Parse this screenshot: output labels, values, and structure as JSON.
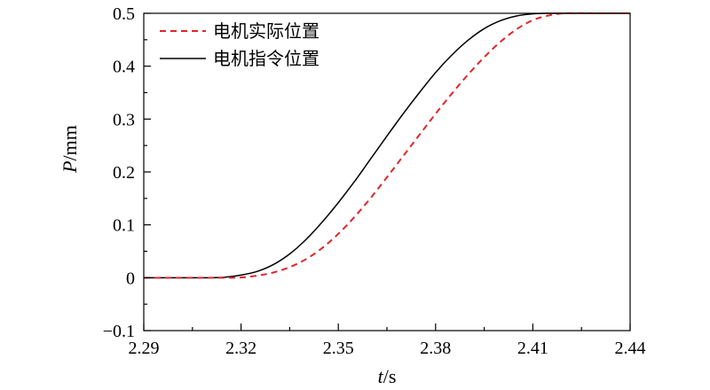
{
  "chart_data": {
    "type": "line",
    "xlabel": {
      "var": "t",
      "unit": "/s"
    },
    "ylabel": {
      "var": "P",
      "unit": "/mm"
    },
    "xlim": [
      2.29,
      2.44
    ],
    "ylim": [
      -0.1,
      0.5
    ],
    "xticks": [
      2.29,
      2.32,
      2.35,
      2.38,
      2.41,
      2.44
    ],
    "xtick_labels": [
      "2.29",
      "2.32",
      "2.35",
      "2.38",
      "2.41",
      "2.44"
    ],
    "yticks": [
      -0.1,
      0,
      0.1,
      0.2,
      0.3,
      0.4,
      0.5
    ],
    "ytick_labels": [
      "−0.1",
      "0",
      "0.1",
      "0.2",
      "0.3",
      "0.4",
      "0.5"
    ],
    "grid": false,
    "legend_position": "top-left",
    "series": [
      {
        "name": "电机实际位置",
        "color": "#e0262b",
        "dash": "dashed",
        "x": [
          2.29,
          2.3,
          2.31,
          2.315,
          2.32,
          2.325,
          2.33,
          2.335,
          2.34,
          2.345,
          2.35,
          2.355,
          2.36,
          2.365,
          2.37,
          2.375,
          2.38,
          2.385,
          2.39,
          2.395,
          2.4,
          2.405,
          2.41,
          2.415,
          2.42,
          2.43,
          2.44
        ],
        "y": [
          0,
          0,
          0,
          0,
          0.0005,
          0.004,
          0.01,
          0.02,
          0.035,
          0.056,
          0.083,
          0.115,
          0.151,
          0.19,
          0.23,
          0.27,
          0.31,
          0.348,
          0.384,
          0.417,
          0.446,
          0.47,
          0.487,
          0.496,
          0.5,
          0.5,
          0.5
        ]
      },
      {
        "name": "电机指令位置",
        "color": "#000000",
        "dash": "solid",
        "x": [
          2.29,
          2.3,
          2.31,
          2.315,
          2.32,
          2.325,
          2.33,
          2.335,
          2.34,
          2.345,
          2.35,
          2.355,
          2.36,
          2.365,
          2.37,
          2.375,
          2.38,
          2.385,
          2.39,
          2.395,
          2.4,
          2.405,
          2.41,
          2.415,
          2.42,
          2.43,
          2.44
        ],
        "y": [
          0,
          0,
          0,
          0.001,
          0.005,
          0.012,
          0.025,
          0.045,
          0.072,
          0.105,
          0.142,
          0.182,
          0.225,
          0.268,
          0.31,
          0.35,
          0.388,
          0.421,
          0.449,
          0.471,
          0.486,
          0.495,
          0.499,
          0.5,
          0.5,
          0.5,
          0.5
        ]
      }
    ]
  }
}
